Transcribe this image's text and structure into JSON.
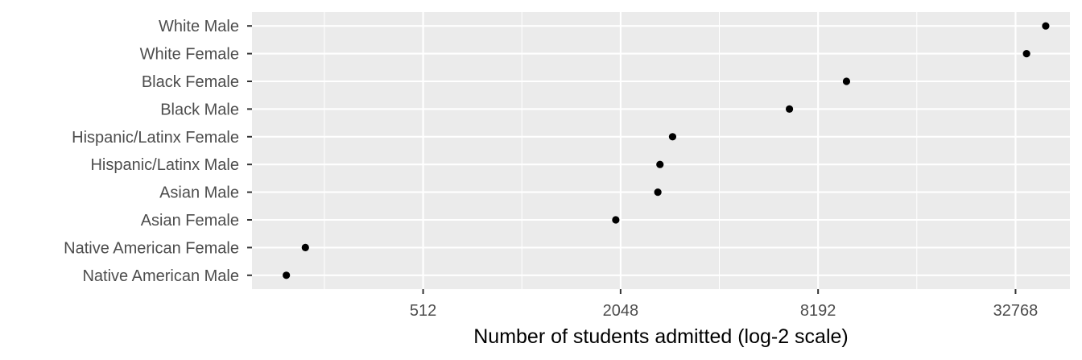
{
  "chart_data": {
    "type": "scatter",
    "title": "",
    "xlabel": "Number of students admitted (log-2 scale)",
    "ylabel": "",
    "x_scale": "log2",
    "xlim": [
      154,
      48000
    ],
    "x_ticks": [
      512,
      2048,
      8192,
      32768
    ],
    "x_tick_labels": [
      "512",
      "2048",
      "8192",
      "32768"
    ],
    "grid": true,
    "categories": [
      "Native American Male",
      "Native American Female",
      "Asian Female",
      "Asian Male",
      "Hispanic/Latinx Male",
      "Hispanic/Latinx Female",
      "Black Male",
      "Black Female",
      "White Female",
      "White Male"
    ],
    "values": [
      196,
      224,
      1980,
      2660,
      2700,
      2950,
      6700,
      10000,
      35400,
      40500
    ],
    "colors": {
      "panel": "#ebebeb",
      "grid": "#ffffff",
      "point": "#000000",
      "tick": "#333333",
      "text": "#4d4d4d"
    }
  }
}
